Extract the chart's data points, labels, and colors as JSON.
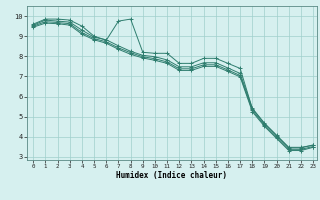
{
  "title": "",
  "xlabel": "Humidex (Indice chaleur)",
  "ylabel": "",
  "bg_color": "#d6f0ef",
  "line_color": "#2e7d6e",
  "grid_color": "#a0d0cc",
  "xlim": [
    -0.5,
    23.3
  ],
  "ylim": [
    2.85,
    10.5
  ],
  "yticks": [
    3,
    4,
    5,
    6,
    7,
    8,
    9,
    10
  ],
  "xticks": [
    0,
    1,
    2,
    3,
    4,
    5,
    6,
    7,
    8,
    9,
    10,
    11,
    12,
    13,
    14,
    15,
    16,
    17,
    18,
    19,
    20,
    21,
    22,
    23
  ],
  "lines": [
    {
      "x": [
        0,
        1,
        2,
        3,
        4,
        5,
        6,
        7,
        8,
        9,
        10,
        11,
        12,
        13,
        14,
        15,
        16,
        17,
        18,
        19,
        20,
        21,
        22,
        23
      ],
      "y": [
        9.6,
        9.85,
        9.85,
        9.8,
        9.5,
        9.0,
        8.8,
        9.75,
        9.85,
        8.2,
        8.15,
        8.15,
        7.65,
        7.65,
        7.9,
        7.9,
        7.65,
        7.4,
        5.4,
        4.65,
        4.05,
        3.45,
        3.45,
        3.6
      ]
    },
    {
      "x": [
        0,
        1,
        2,
        3,
        4,
        5,
        6,
        7,
        8,
        9,
        10,
        11,
        12,
        13,
        14,
        15,
        16,
        17,
        18,
        19,
        20,
        21,
        22,
        23
      ],
      "y": [
        9.55,
        9.8,
        9.75,
        9.7,
        9.3,
        8.95,
        8.82,
        8.52,
        8.25,
        8.05,
        7.98,
        7.82,
        7.48,
        7.48,
        7.68,
        7.68,
        7.42,
        7.15,
        5.42,
        4.68,
        4.08,
        3.48,
        3.48,
        3.58
      ]
    },
    {
      "x": [
        0,
        1,
        2,
        3,
        4,
        5,
        6,
        7,
        8,
        9,
        10,
        11,
        12,
        13,
        14,
        15,
        16,
        17,
        18,
        19,
        20,
        21,
        22,
        23
      ],
      "y": [
        9.5,
        9.72,
        9.68,
        9.62,
        9.18,
        8.88,
        8.72,
        8.42,
        8.18,
        7.98,
        7.88,
        7.72,
        7.38,
        7.38,
        7.58,
        7.58,
        7.32,
        7.05,
        5.32,
        4.58,
        3.98,
        3.38,
        3.38,
        3.52
      ]
    },
    {
      "x": [
        0,
        1,
        2,
        3,
        4,
        5,
        6,
        7,
        8,
        9,
        10,
        11,
        12,
        13,
        14,
        15,
        16,
        17,
        18,
        19,
        20,
        21,
        22,
        23
      ],
      "y": [
        9.45,
        9.65,
        9.62,
        9.55,
        9.1,
        8.82,
        8.65,
        8.35,
        8.1,
        7.92,
        7.8,
        7.65,
        7.3,
        7.3,
        7.5,
        7.5,
        7.25,
        6.98,
        5.25,
        4.52,
        3.92,
        3.32,
        3.32,
        3.48
      ]
    }
  ]
}
